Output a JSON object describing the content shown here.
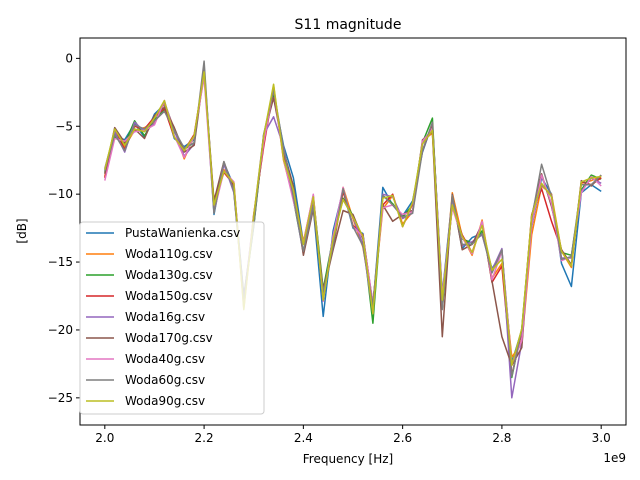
{
  "chart_data": {
    "type": "line",
    "title": "S11 magnitude",
    "xlabel": "Frequency [Hz]",
    "ylabel": "[dB]",
    "x_offset_label": "1e9",
    "xlim": [
      1.95,
      3.05
    ],
    "ylim": [
      -27.0,
      1.5
    ],
    "x_ticks": [
      2.0,
      2.2,
      2.4,
      2.6,
      2.8,
      3.0
    ],
    "x_tick_labels": [
      "2.0",
      "2.2",
      "2.4",
      "2.6",
      "2.8",
      "3.0"
    ],
    "y_ticks": [
      0,
      -5,
      -10,
      -15,
      -20,
      -25
    ],
    "y_tick_labels": [
      "0",
      "−5",
      "−10",
      "−15",
      "−20",
      "−25"
    ],
    "grid": false,
    "legend_position": "lower-left",
    "x": [
      2.0,
      2.02,
      2.04,
      2.06,
      2.08,
      2.1,
      2.12,
      2.14,
      2.16,
      2.18,
      2.2,
      2.22,
      2.24,
      2.26,
      2.28,
      2.3,
      2.32,
      2.34,
      2.36,
      2.38,
      2.4,
      2.42,
      2.44,
      2.46,
      2.48,
      2.5,
      2.52,
      2.54,
      2.56,
      2.58,
      2.6,
      2.62,
      2.64,
      2.66,
      2.68,
      2.7,
      2.72,
      2.74,
      2.76,
      2.78,
      2.8,
      2.82,
      2.84,
      2.86,
      2.88,
      2.9,
      2.92,
      2.94,
      2.96,
      2.98,
      3.0
    ],
    "base_values": [
      -8.5,
      -5.5,
      -6.5,
      -5.0,
      -5.5,
      -4.5,
      -3.5,
      -5.5,
      -7.0,
      -6.0,
      -1.0,
      -11.0,
      -8.0,
      -9.5,
      -18.0,
      -12.0,
      -6.0,
      -2.5,
      -7.0,
      -10.0,
      -14.0,
      -10.5,
      -17.5,
      -13.5,
      -10.0,
      -12.0,
      -13.5,
      -18.5,
      -10.5,
      -10.5,
      -12.0,
      -11.0,
      -6.5,
      -5.0,
      -18.0,
      -10.5,
      -13.5,
      -14.0,
      -12.5,
      -16.0,
      -14.5,
      -23.0,
      -20.5,
      -12.0,
      -9.0,
      -10.5,
      -14.5,
      -15.0,
      -9.5,
      -9.0,
      -9.0
    ],
    "series": [
      {
        "name": "PustaWanienka.csv",
        "color": "#1f77b4",
        "offsets": [
          0.3,
          -0.2,
          0.5,
          0.2,
          -0.3,
          0.4,
          0.1,
          -0.4,
          0.5,
          0.0,
          0.2,
          -0.5,
          0.3,
          0.1,
          0.5,
          -0.3,
          0.4,
          -0.2,
          0.6,
          1.2,
          0.4,
          -0.5,
          -1.5,
          0.8,
          0.3,
          -0.5,
          0.6,
          0.2,
          1.0,
          -0.3,
          0.4,
          0.5,
          -0.4,
          0.2,
          0.6,
          0.3,
          -0.5,
          0.8,
          -0.4,
          0.5,
          0.2,
          0.6,
          0.5,
          -0.4,
          0.2,
          0.5,
          -0.6,
          -1.8,
          -0.4,
          -0.3,
          -0.8
        ]
      },
      {
        "name": "Woda110g.csv",
        "color": "#ff7f0e",
        "offsets": [
          -0.2,
          0.3,
          0.0,
          -0.3,
          0.4,
          -0.2,
          0.2,
          0.3,
          -0.4,
          0.3,
          -0.3,
          0.4,
          -0.2,
          0.3,
          -0.4,
          0.2,
          -0.3,
          0.5,
          -0.5,
          -0.3,
          0.5,
          0.4,
          0.2,
          -0.3,
          0.5,
          0.2,
          -0.4,
          0.3,
          -0.6,
          0.4,
          -0.2,
          -0.3,
          0.4,
          -0.5,
          -0.3,
          0.6,
          0.4,
          -0.5,
          0.6,
          -0.2,
          -0.6,
          1.0,
          -0.5,
          -1.0,
          -0.4,
          0.5,
          0.3,
          -0.4,
          0.3,
          0.0,
          0.3
        ]
      },
      {
        "name": "Woda130g.csv",
        "color": "#2ca02c",
        "offsets": [
          0.1,
          -0.3,
          0.2,
          0.4,
          -0.2,
          0.0,
          -0.3,
          0.1,
          0.3,
          -0.2,
          0.4,
          0.0,
          0.3,
          -0.3,
          0.3,
          -0.4,
          0.2,
          0.0,
          0.3,
          -0.4,
          -0.3,
          0.3,
          0.5,
          0.3,
          -0.3,
          0.4,
          0.3,
          -1.0,
          0.4,
          -0.2,
          0.3,
          0.2,
          0.3,
          0.6,
          -0.4,
          -0.3,
          0.2,
          0.4,
          -0.2,
          0.3,
          0.4,
          -0.5,
          0.6,
          0.3,
          0.4,
          -0.3,
          0.2,
          0.5,
          -0.2,
          0.4,
          0.1
        ]
      },
      {
        "name": "Woda150g.csv",
        "color": "#d62728",
        "offsets": [
          -0.3,
          0.2,
          -0.2,
          0.0,
          0.3,
          0.2,
          -0.2,
          -0.3,
          0.2,
          0.4,
          -0.1,
          0.3,
          -0.4,
          0.2,
          -0.2,
          0.5,
          -0.5,
          0.3,
          -0.2,
          0.4,
          0.3,
          -0.3,
          0.4,
          -0.4,
          0.2,
          -0.3,
          0.5,
          0.4,
          -0.3,
          0.5,
          -0.4,
          0.3,
          -0.3,
          0.2,
          0.3,
          -0.4,
          0.5,
          -0.3,
          0.4,
          -0.5,
          -0.8,
          -0.3,
          0.3,
          0.5,
          -0.6,
          -1.5,
          0.4,
          -0.3,
          0.4,
          -0.3,
          0.2
        ]
      },
      {
        "name": "Woda16g.csv",
        "color": "#9467bd",
        "offsets": [
          0.4,
          0.1,
          -0.4,
          0.3,
          0.1,
          -0.3,
          0.3,
          0.2,
          -0.2,
          -0.3,
          0.3,
          -0.2,
          0.2,
          -0.4,
          0.2,
          0.3,
          0.4,
          -1.8,
          0.5,
          -0.2,
          -0.4,
          0.2,
          -0.3,
          0.5,
          -0.4,
          0.3,
          -0.2,
          -0.3,
          0.5,
          0.3,
          0.2,
          -0.4,
          0.2,
          -0.3,
          0.4,
          0.2,
          -0.3,
          0.5,
          -0.5,
          0.4,
          0.5,
          -2.0,
          -0.4,
          0.2,
          -0.3,
          0.4,
          -0.2,
          0.3,
          -0.3,
          0.2,
          -0.2
        ]
      },
      {
        "name": "Woda170g.csv",
        "color": "#8c564b",
        "offsets": [
          0.0,
          0.4,
          0.3,
          -0.2,
          -0.4,
          0.3,
          -0.1,
          0.4,
          0.1,
          -0.4,
          0.1,
          0.5,
          0.4,
          -0.2,
          0.4,
          -0.2,
          0.3,
          -0.4,
          0.2,
          0.6,
          -0.5,
          -0.6,
          0.3,
          -0.6,
          -1.2,
          0.5,
          0.2,
          0.4,
          -0.3,
          -1.5,
          0.5,
          -0.2,
          0.5,
          -0.4,
          -2.5,
          0.5,
          -0.6,
          0.3,
          0.3,
          -0.4,
          -6.0,
          0.4,
          -0.8,
          0.4,
          0.5,
          -0.4,
          0.4,
          -0.2,
          0.5,
          -0.4,
          0.4
        ]
      },
      {
        "name": "Woda40g.csv",
        "color": "#e377c2",
        "offsets": [
          -0.5,
          -0.4,
          0.4,
          -0.4,
          0.2,
          -0.4,
          0.4,
          -0.2,
          -0.3,
          0.3,
          -0.4,
          -0.3,
          -0.3,
          0.4,
          -0.3,
          0.4,
          -0.2,
          0.3,
          -0.4,
          -0.5,
          0.4,
          0.5,
          -0.4,
          0.4,
          0.5,
          -0.4,
          0.4,
          0.5,
          -0.5,
          -0.3,
          0.5,
          -0.3,
          0.4,
          -0.2,
          0.5,
          -0.5,
          0.3,
          -0.4,
          0.5,
          -0.3,
          0.3,
          0.5,
          -0.3,
          -0.3,
          0.4,
          -0.2,
          -0.4,
          0.4,
          -0.4,
          0.3,
          -0.4
        ]
      },
      {
        "name": "Woda60g.csv",
        "color": "#7f7f7f",
        "offsets": [
          0.2,
          -0.1,
          -0.3,
          0.1,
          0.3,
          -0.1,
          -0.4,
          0.2,
          0.4,
          -0.2,
          0.8,
          -0.4,
          0.4,
          -0.3,
          0.3,
          -0.3,
          0.4,
          0.2,
          0.4,
          -0.2,
          -0.2,
          -0.4,
          0.3,
          -0.3,
          0.4,
          -0.4,
          -0.3,
          0.3,
          0.4,
          -0.3,
          0.3,
          -0.4,
          -0.3,
          0.3,
          -0.5,
          0.4,
          -0.2,
          0.3,
          -0.4,
          0.2,
          0.4,
          -0.4,
          0.5,
          0.2,
          1.2,
          0.3,
          -0.3,
          0.4,
          0.2,
          -0.3,
          0.4
        ]
      },
      {
        "name": "Woda90g.csv",
        "color": "#bcbd22",
        "offsets": [
          0.3,
          0.3,
          0.1,
          -0.2,
          0.1,
          0.1,
          0.4,
          -0.3,
          0.2,
          0.3,
          0.0,
          0.2,
          -0.3,
          0.3,
          -0.5,
          0.4,
          0.3,
          0.6,
          -0.4,
          0.3,
          0.3,
          0.3,
          -0.3,
          0.2,
          -0.4,
          0.3,
          0.4,
          -0.3,
          0.2,
          0.4,
          -0.4,
          0.4,
          0.2,
          -0.3,
          0.2,
          -0.3,
          0.4,
          -0.3,
          0.2,
          0.4,
          -0.3,
          0.4,
          0.6,
          0.4,
          -0.2,
          0.3,
          0.3,
          -0.3,
          0.4,
          0.2,
          0.3
        ]
      }
    ]
  }
}
